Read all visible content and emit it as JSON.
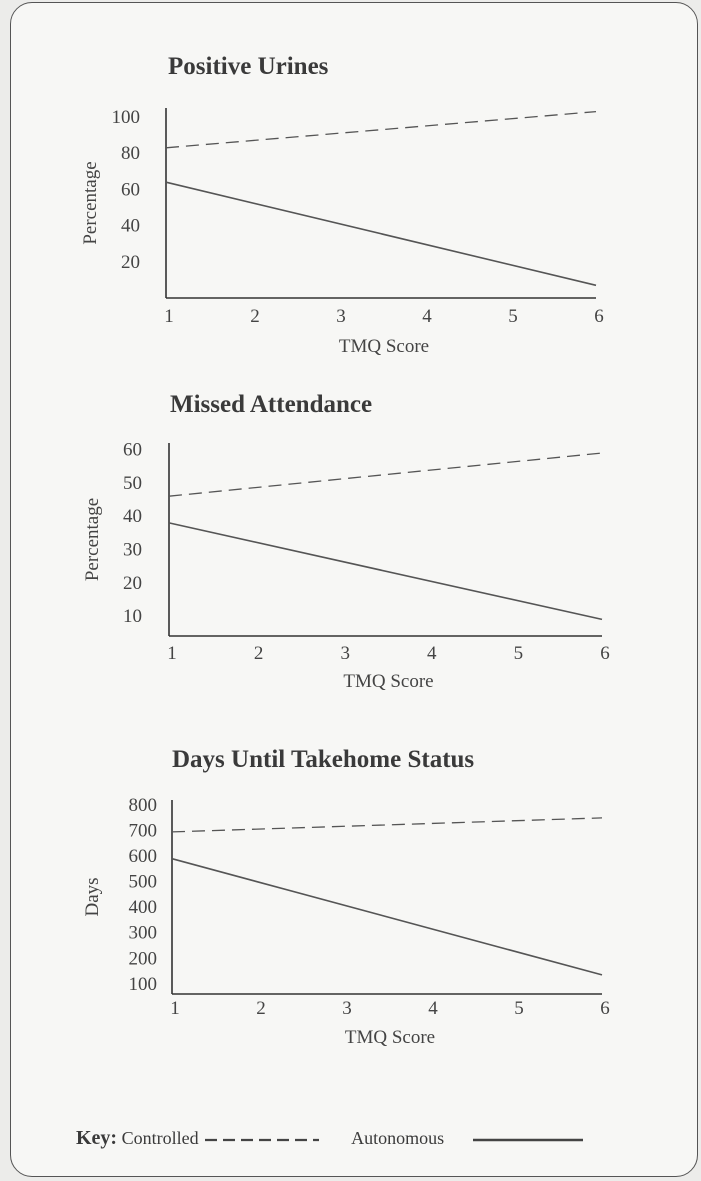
{
  "chart_data": [
    {
      "type": "line",
      "title": "Positive Urines",
      "xlabel": "TMQ Score",
      "ylabel": "Percentage",
      "x_ticks": [
        "1",
        "2",
        "3",
        "4",
        "5",
        "6"
      ],
      "y_ticks": [
        "100",
        "80",
        "60",
        "40",
        "20"
      ],
      "xlim": [
        1,
        6
      ],
      "ylim": [
        0,
        105
      ],
      "grid": false,
      "series": [
        {
          "name": "Controlled",
          "style": "dashed",
          "x": [
            1,
            6
          ],
          "y": [
            83,
            103
          ]
        },
        {
          "name": "Autonomous",
          "style": "solid",
          "x": [
            1,
            6
          ],
          "y": [
            64,
            7
          ]
        }
      ]
    },
    {
      "type": "line",
      "title": "Missed Attendance",
      "xlabel": "TMQ Score",
      "ylabel": "Percentage",
      "x_ticks": [
        "1",
        "2",
        "3",
        "4",
        "5",
        "6"
      ],
      "y_ticks": [
        "60",
        "50",
        "40",
        "30",
        "20",
        "10"
      ],
      "xlim": [
        1,
        6
      ],
      "ylim": [
        4,
        62
      ],
      "grid": false,
      "series": [
        {
          "name": "Controlled",
          "style": "dashed",
          "x": [
            1,
            6
          ],
          "y": [
            46,
            59
          ]
        },
        {
          "name": "Autonomous",
          "style": "solid",
          "x": [
            1,
            6
          ],
          "y": [
            38,
            9
          ]
        }
      ]
    },
    {
      "type": "line",
      "title": "Days Until Takehome Status",
      "xlabel": "TMQ Score",
      "ylabel": "Days",
      "x_ticks": [
        "1",
        "2",
        "3",
        "4",
        "5",
        "6"
      ],
      "y_ticks": [
        "800",
        "700",
        "600",
        "500",
        "400",
        "300",
        "200",
        "100"
      ],
      "xlim": [
        1,
        6
      ],
      "ylim": [
        60,
        820
      ],
      "grid": false,
      "series": [
        {
          "name": "Controlled",
          "style": "dashed",
          "x": [
            1,
            6
          ],
          "y": [
            695,
            750
          ]
        },
        {
          "name": "Autonomous",
          "style": "solid",
          "x": [
            1,
            6
          ],
          "y": [
            590,
            135
          ]
        }
      ]
    }
  ],
  "key": {
    "label": "Key:",
    "controlled": "Controlled",
    "autonomous": "Autonomous"
  }
}
